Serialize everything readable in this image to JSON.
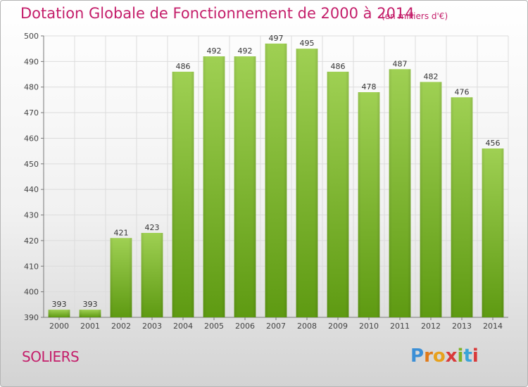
{
  "chart_data": {
    "type": "bar",
    "title": "Dotation Globale de Fonctionnement de 2000 à 2014",
    "subtitle": "(en milliers d'€)",
    "categories": [
      "2000",
      "2001",
      "2002",
      "2003",
      "2004",
      "2005",
      "2006",
      "2007",
      "2008",
      "2009",
      "2010",
      "2011",
      "2012",
      "2013",
      "2014"
    ],
    "values": [
      393,
      393,
      421,
      423,
      486,
      492,
      492,
      497,
      495,
      486,
      478,
      487,
      482,
      476,
      456
    ],
    "ylim": [
      390,
      500
    ],
    "yticks": [
      390,
      400,
      410,
      420,
      430,
      440,
      450,
      460,
      470,
      480,
      490,
      500
    ],
    "grid": true,
    "bar_color_top": "#9fd053",
    "bar_color_bottom": "#5e9a12"
  },
  "footer": {
    "commune": "SOLIERS",
    "logo": "Proxiti"
  },
  "colors": {
    "title": "#c41e6a",
    "grid": "#dcdcdc"
  }
}
